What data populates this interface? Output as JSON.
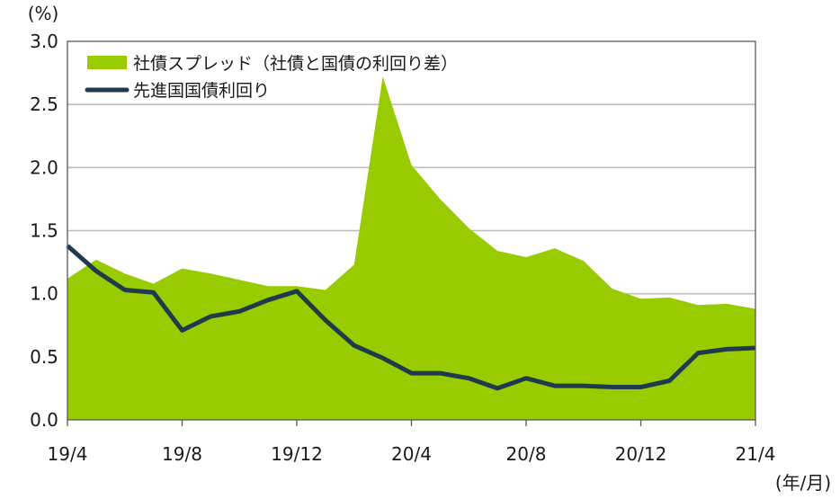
{
  "chart_data": {
    "type": "area",
    "y_unit": "(%)",
    "x_unit": "(年/月)",
    "ylim": [
      0,
      3.0
    ],
    "y_ticks": [
      "0.0",
      "0.5",
      "1.0",
      "1.5",
      "2.0",
      "2.5",
      "3.0"
    ],
    "x_ticks": [
      "19/4",
      "19/8",
      "19/12",
      "20/4",
      "20/8",
      "20/12",
      "21/4"
    ],
    "grid": true,
    "legend_position": "top-left",
    "x": [
      "19/4",
      "19/5",
      "19/6",
      "19/7",
      "19/8",
      "19/9",
      "19/10",
      "19/11",
      "19/12",
      "20/1",
      "20/2",
      "20/3",
      "20/4",
      "20/5",
      "20/6",
      "20/7",
      "20/8",
      "20/9",
      "20/10",
      "20/11",
      "20/12",
      "21/1",
      "21/2",
      "21/3",
      "21/4"
    ],
    "series": [
      {
        "name": "社債スプレッド（社債と国債の利回り差）",
        "kind": "area",
        "color": "#99cc00",
        "values": [
          1.12,
          1.27,
          1.16,
          1.08,
          1.2,
          1.16,
          1.11,
          1.06,
          1.06,
          1.03,
          1.23,
          2.72,
          2.02,
          1.75,
          1.52,
          1.34,
          1.29,
          1.36,
          1.26,
          1.04,
          0.96,
          0.97,
          0.91,
          0.92,
          0.88
        ]
      },
      {
        "name": "先進国国債利回り",
        "kind": "line",
        "color": "#1f3a4d",
        "values": [
          1.38,
          1.18,
          1.03,
          1.01,
          0.71,
          0.82,
          0.86,
          0.95,
          1.02,
          0.79,
          0.59,
          0.49,
          0.37,
          0.37,
          0.33,
          0.25,
          0.33,
          0.27,
          0.27,
          0.26,
          0.26,
          0.31,
          0.53,
          0.56,
          0.57
        ]
      }
    ]
  }
}
